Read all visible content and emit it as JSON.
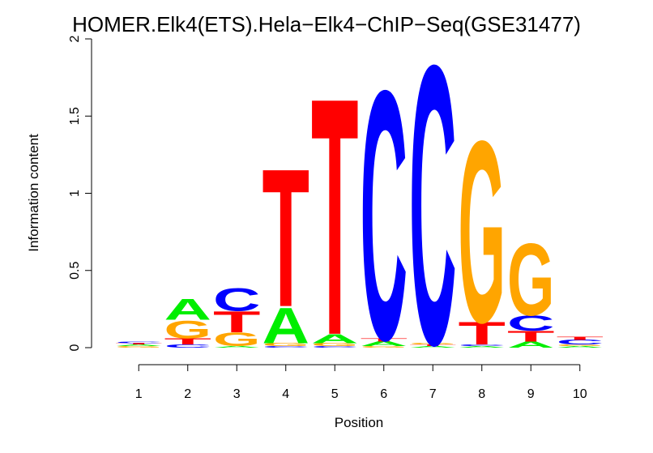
{
  "chart_data": {
    "type": "sequence-logo",
    "title": "HOMER.Elk4(ETS).Hela−Elk4−ChIP−Seq(GSE31477)",
    "xlabel": "Position",
    "ylabel": "Information content",
    "ylim": [
      0,
      2
    ],
    "y_ticks": [
      {
        "value": 0,
        "label": "0"
      },
      {
        "value": 0.5,
        "label": "0.5"
      },
      {
        "value": 1,
        "label": "1"
      },
      {
        "value": 1.5,
        "label": "1.5"
      },
      {
        "value": 2,
        "label": "2"
      }
    ],
    "x_ticks": [
      "1",
      "2",
      "3",
      "4",
      "5",
      "6",
      "7",
      "8",
      "9",
      "10"
    ],
    "colors": {
      "A": "#00ee00",
      "C": "#0000ff",
      "G": "#ffa500",
      "T": "#ff0000"
    },
    "positions": [
      {
        "position": "1",
        "stack": [
          {
            "letter": "G",
            "height": 0.01
          },
          {
            "letter": "A",
            "height": 0.01
          },
          {
            "letter": "T",
            "height": 0.01
          },
          {
            "letter": "C",
            "height": 0.01
          }
        ]
      },
      {
        "position": "2",
        "stack": [
          {
            "letter": "C",
            "height": 0.02
          },
          {
            "letter": "T",
            "height": 0.04
          },
          {
            "letter": "G",
            "height": 0.12
          },
          {
            "letter": "A",
            "height": 0.14
          }
        ]
      },
      {
        "position": "3",
        "stack": [
          {
            "letter": "A",
            "height": 0.01
          },
          {
            "letter": "G",
            "height": 0.09
          },
          {
            "letter": "T",
            "height": 0.14
          },
          {
            "letter": "C",
            "height": 0.15
          }
        ]
      },
      {
        "position": "4",
        "stack": [
          {
            "letter": "C",
            "height": 0.01
          },
          {
            "letter": "G",
            "height": 0.02
          },
          {
            "letter": "A",
            "height": 0.24
          },
          {
            "letter": "T",
            "height": 0.92
          }
        ]
      },
      {
        "position": "5",
        "stack": [
          {
            "letter": "C",
            "height": 0.01
          },
          {
            "letter": "G",
            "height": 0.02
          },
          {
            "letter": "A",
            "height": 0.06
          },
          {
            "letter": "T",
            "height": 1.58
          }
        ]
      },
      {
        "position": "6",
        "stack": [
          {
            "letter": "G",
            "height": 0.01
          },
          {
            "letter": "A",
            "height": 0.03
          },
          {
            "letter": "T",
            "height": 0.02
          },
          {
            "letter": "C",
            "height": 1.66
          }
        ]
      },
      {
        "position": "7",
        "stack": [
          {
            "letter": "A",
            "height": 0.01
          },
          {
            "letter": "T",
            "height": 0.01
          },
          {
            "letter": "G",
            "height": 0.01
          },
          {
            "letter": "C",
            "height": 1.86
          }
        ]
      },
      {
        "position": "8",
        "stack": [
          {
            "letter": "A",
            "height": 0.01
          },
          {
            "letter": "C",
            "height": 0.01
          },
          {
            "letter": "T",
            "height": 0.15
          },
          {
            "letter": "G",
            "height": 1.21
          }
        ]
      },
      {
        "position": "9",
        "stack": [
          {
            "letter": "A",
            "height": 0.04
          },
          {
            "letter": "T",
            "height": 0.07
          },
          {
            "letter": "C",
            "height": 0.1
          },
          {
            "letter": "G",
            "height": 0.48
          }
        ]
      },
      {
        "position": "10",
        "stack": [
          {
            "letter": "A",
            "height": 0.01
          },
          {
            "letter": "G",
            "height": 0.01
          },
          {
            "letter": "C",
            "height": 0.03
          },
          {
            "letter": "T",
            "height": 0.02
          }
        ]
      }
    ]
  }
}
